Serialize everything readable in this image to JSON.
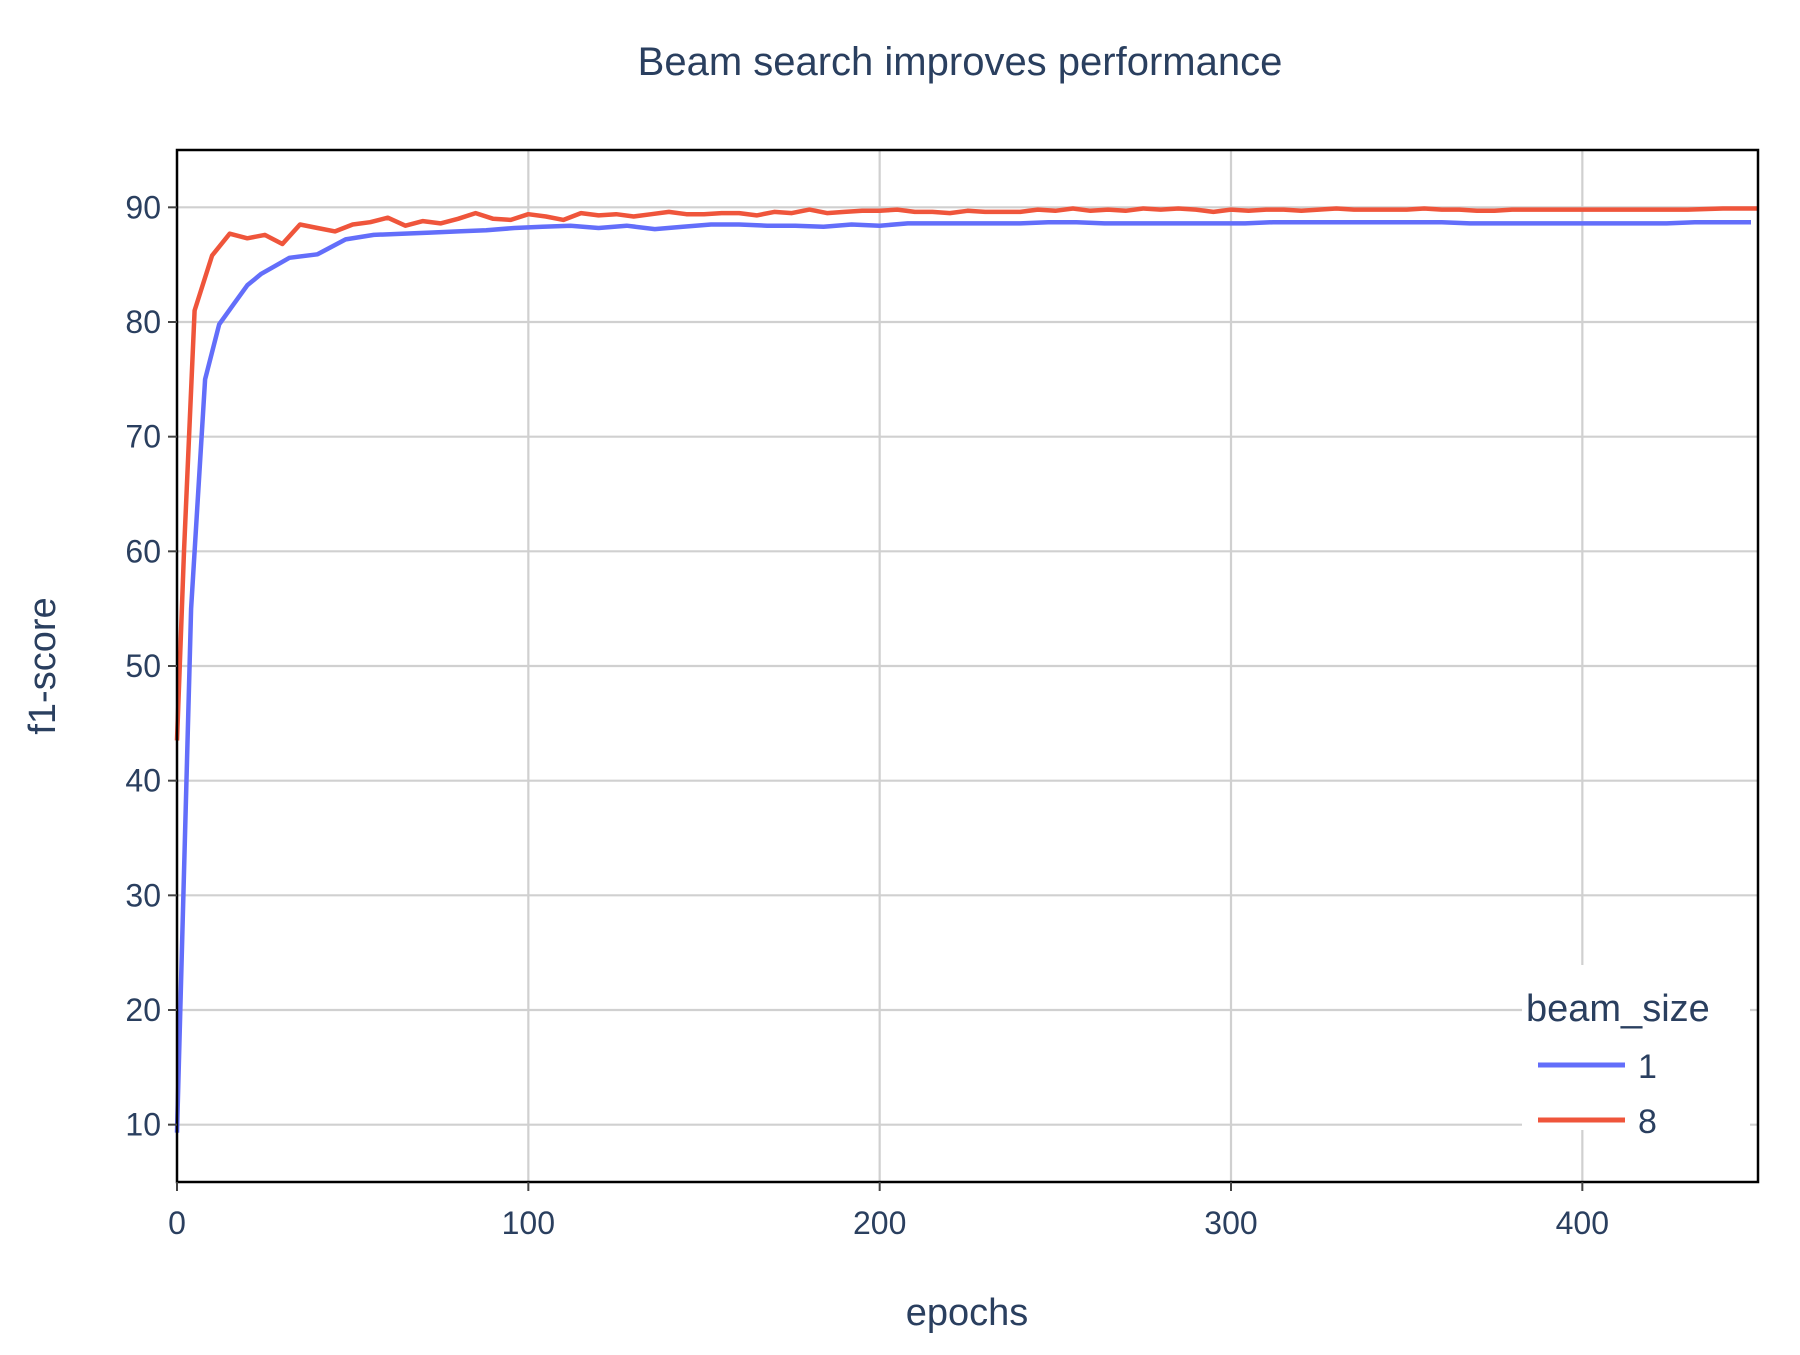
{
  "chart_data": {
    "type": "line",
    "title": "Beam search improves performance",
    "xlabel": "epochs",
    "ylabel": "f1-score",
    "xlim": [
      0,
      450
    ],
    "ylim": [
      5,
      95
    ],
    "x_ticks": [
      0,
      100,
      200,
      300,
      400
    ],
    "y_ticks": [
      10,
      20,
      30,
      40,
      50,
      60,
      70,
      80,
      90
    ],
    "grid": true,
    "legend": {
      "title": "beam_size",
      "position": "bottom-right"
    },
    "series": [
      {
        "name": "1",
        "color": "#636efa",
        "x": [
          0,
          2,
          4,
          6,
          8,
          12,
          16,
          20,
          24,
          28,
          32,
          40,
          48,
          56,
          64,
          72,
          80,
          88,
          96,
          104,
          112,
          120,
          128,
          136,
          144,
          152,
          160,
          168,
          176,
          184,
          192,
          200,
          208,
          216,
          224,
          232,
          240,
          248,
          256,
          264,
          272,
          280,
          288,
          296,
          304,
          312,
          320,
          328,
          336,
          344,
          352,
          360,
          368,
          376,
          384,
          392,
          400,
          408,
          416,
          424,
          432,
          440,
          448
        ],
        "values": [
          9.3,
          32,
          55,
          65,
          75,
          79.8,
          81.5,
          83.2,
          84.2,
          84.9,
          85.6,
          85.9,
          87.2,
          87.6,
          87.7,
          87.8,
          87.9,
          88.0,
          88.2,
          88.3,
          88.4,
          88.2,
          88.4,
          88.1,
          88.3,
          88.5,
          88.5,
          88.4,
          88.4,
          88.3,
          88.5,
          88.4,
          88.6,
          88.6,
          88.6,
          88.6,
          88.6,
          88.7,
          88.7,
          88.6,
          88.6,
          88.6,
          88.6,
          88.6,
          88.6,
          88.7,
          88.7,
          88.7,
          88.7,
          88.7,
          88.7,
          88.7,
          88.6,
          88.6,
          88.6,
          88.6,
          88.6,
          88.6,
          88.6,
          88.6,
          88.7,
          88.7,
          88.7
        ]
      },
      {
        "name": "8",
        "color": "#ef553b",
        "x": [
          0,
          2,
          5,
          10,
          15,
          20,
          25,
          30,
          35,
          40,
          45,
          50,
          55,
          60,
          65,
          70,
          75,
          80,
          85,
          90,
          95,
          100,
          105,
          110,
          115,
          120,
          125,
          130,
          135,
          140,
          145,
          150,
          155,
          160,
          165,
          170,
          175,
          180,
          185,
          190,
          195,
          200,
          205,
          210,
          215,
          220,
          225,
          230,
          235,
          240,
          245,
          250,
          255,
          260,
          265,
          270,
          275,
          280,
          285,
          290,
          295,
          300,
          305,
          310,
          315,
          320,
          325,
          330,
          335,
          340,
          345,
          350,
          355,
          360,
          365,
          370,
          375,
          380,
          390,
          400,
          410,
          420,
          430,
          440,
          450
        ],
        "values": [
          43.5,
          60,
          81,
          85.8,
          87.7,
          87.3,
          87.6,
          86.8,
          88.5,
          88.2,
          87.9,
          88.5,
          88.7,
          89.1,
          88.4,
          88.8,
          88.6,
          89.0,
          89.5,
          89.0,
          88.9,
          89.4,
          89.2,
          88.9,
          89.5,
          89.3,
          89.4,
          89.2,
          89.4,
          89.6,
          89.4,
          89.4,
          89.5,
          89.5,
          89.3,
          89.6,
          89.5,
          89.8,
          89.5,
          89.6,
          89.7,
          89.7,
          89.8,
          89.6,
          89.6,
          89.5,
          89.7,
          89.6,
          89.6,
          89.6,
          89.8,
          89.7,
          89.9,
          89.7,
          89.8,
          89.7,
          89.9,
          89.8,
          89.9,
          89.8,
          89.6,
          89.8,
          89.7,
          89.8,
          89.8,
          89.7,
          89.8,
          89.9,
          89.8,
          89.8,
          89.8,
          89.8,
          89.9,
          89.8,
          89.8,
          89.7,
          89.7,
          89.8,
          89.8,
          89.8,
          89.8,
          89.8,
          89.8,
          89.9,
          89.9
        ]
      }
    ]
  }
}
